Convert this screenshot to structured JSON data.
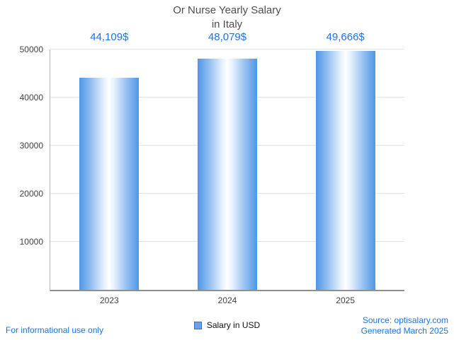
{
  "title": {
    "line1": "Or Nurse Yearly Salary",
    "line2": "in Italy"
  },
  "legend": {
    "label": "Salary in USD"
  },
  "footer": {
    "disclaimer": "For informational use only",
    "source": "Source: optisalary.com",
    "generated": "Generated March 2025"
  },
  "colors": {
    "accent_text": "#1a73e8",
    "bar_edge": "#4e96e6",
    "bar_center": "#ffffff",
    "title_text": "#4d4d4d",
    "axis_text": "#424242",
    "gridline": "#e4e4e4"
  },
  "chart_data": {
    "type": "bar",
    "title": "Or Nurse Yearly Salary in Italy",
    "categories": [
      "2023",
      "2024",
      "2025"
    ],
    "values": [
      44109,
      48079,
      49666
    ],
    "value_labels": [
      "44,109$",
      "48,079$",
      "49,666$"
    ],
    "series": [
      {
        "name": "Salary in USD",
        "values": [
          44109,
          48079,
          49666
        ]
      }
    ],
    "xlabel": "",
    "ylabel": "",
    "ylim": [
      0,
      50000
    ],
    "yticks": [
      "10000",
      "20000",
      "30000",
      "40000",
      "50000"
    ],
    "grid": true,
    "legend_position": "bottom"
  }
}
